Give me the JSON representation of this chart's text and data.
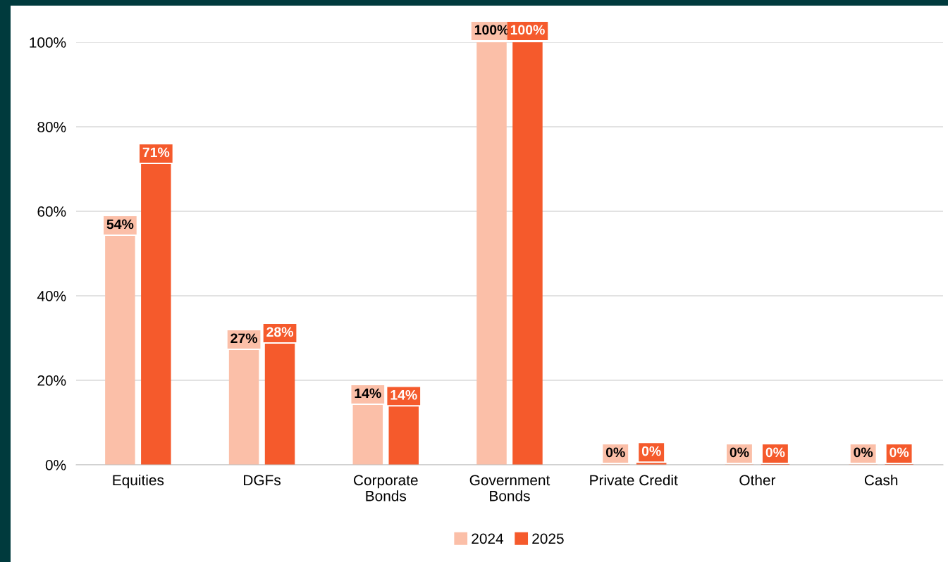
{
  "chart_data": {
    "type": "bar",
    "categories": [
      "Equities",
      "DGFs",
      "Corporate\nBonds",
      "Government\nBonds",
      "Private Credit",
      "Other",
      "Cash"
    ],
    "series": [
      {
        "name": "2024",
        "color": "#fbbfa8",
        "values": [
          54,
          27,
          14,
          100,
          0,
          0,
          0
        ],
        "value_labels": [
          "54%",
          "27%",
          "14%",
          "100%",
          "0%",
          "0%",
          "0%"
        ]
      },
      {
        "name": "2025",
        "color": "#f55a2c",
        "values": [
          71,
          28.5,
          13.6,
          100,
          0.3,
          0,
          0
        ],
        "value_labels": [
          "71%",
          "28%",
          "14%",
          "100%",
          "0%",
          "0%",
          "0%"
        ]
      }
    ],
    "ylim": [
      0,
      100
    ],
    "yticks": [
      {
        "value": 0,
        "label": "0%"
      },
      {
        "value": 20,
        "label": "20%"
      },
      {
        "value": 40,
        "label": "40%"
      },
      {
        "value": 60,
        "label": "60%"
      },
      {
        "value": 80,
        "label": "80%"
      },
      {
        "value": 100,
        "label": "100%"
      }
    ],
    "grid": "y",
    "legend": "bottom"
  }
}
